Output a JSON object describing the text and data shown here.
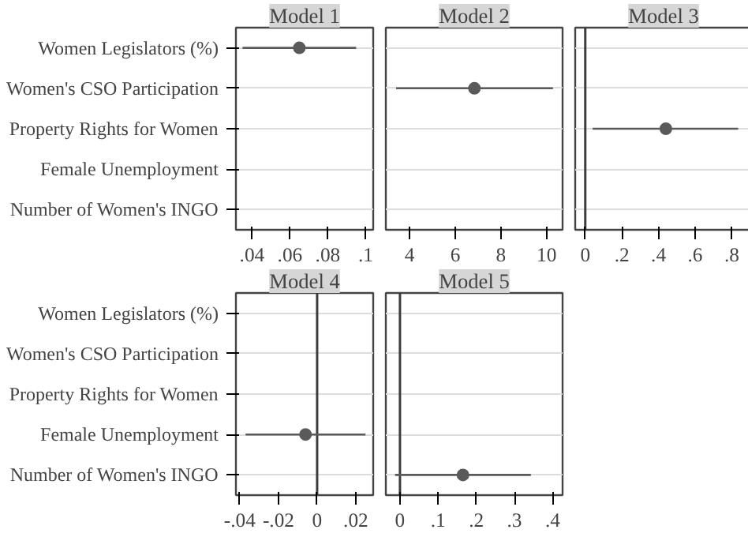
{
  "chart_data": [
    {
      "type": "scatter",
      "orientation": "horizontal",
      "title": "Model 1",
      "categories": [
        "Women Legislators (%)",
        "Women's CSO Participation",
        "Property Rights for Women",
        "Female Unemployment",
        "Number of Women's INGO"
      ],
      "values": [
        0.065,
        null,
        null,
        null,
        null
      ],
      "errors": [
        [
          0.035,
          0.095
        ],
        null,
        null,
        null,
        null
      ],
      "color": "#5a5a5a",
      "marker": "circle",
      "grid": "y",
      "xlim": [
        0.0315,
        0.104
      ],
      "xticks": [
        {
          "value": 0.04,
          "label": ".04"
        },
        {
          "value": 0.06,
          "label": ".06"
        },
        {
          "value": 0.08,
          "label": ".08"
        },
        {
          "value": 0.1,
          "label": ".1"
        }
      ]
    },
    {
      "type": "scatter",
      "orientation": "horizontal",
      "title": "Model 2",
      "categories": [
        null,
        null,
        null,
        null,
        null
      ],
      "values": [
        null,
        6.84,
        null,
        null,
        null
      ],
      "errors": [
        null,
        [
          3.41,
          10.28
        ],
        null,
        null,
        null
      ],
      "color": "#5a5a5a",
      "marker": "circle",
      "grid": "y",
      "tick_labels": "x",
      "xlim": [
        2.96,
        10.7
      ],
      "xticks": [
        4,
        6,
        8,
        10
      ]
    },
    {
      "type": "scatter",
      "orientation": "horizontal",
      "title": "Model 3",
      "categories": [
        null,
        null,
        null,
        null,
        null
      ],
      "values": [
        null,
        null,
        0.44,
        null,
        null
      ],
      "errors": [
        null,
        null,
        [
          0.04,
          0.835
        ],
        null,
        null
      ],
      "color": "#5a5a5a",
      "marker": "circle",
      "grid": "y",
      "tick_labels": "x",
      "xlim": [
        -0.055,
        0.91
      ],
      "xticks": [
        {
          "value": 0,
          "label": "0"
        },
        {
          "value": 0.2,
          "label": ".2"
        },
        {
          "value": 0.4,
          "label": ".4"
        },
        {
          "value": 0.6,
          "label": ".6"
        },
        {
          "value": 0.8,
          "label": ".8"
        }
      ],
      "ref_lines": [
        {
          "axis": "x",
          "value": 0,
          "color": "#3c3c3c"
        }
      ]
    },
    {
      "type": "scatter",
      "orientation": "horizontal",
      "title": "Model 4",
      "categories": [
        "Women Legislators (%)",
        "Women's CSO Participation",
        "Property Rights for Women",
        "Female Unemployment",
        "Number of Women's INGO"
      ],
      "values": [
        null,
        null,
        null,
        -0.006,
        null
      ],
      "errors": [
        null,
        null,
        null,
        [
          -0.037,
          0.025
        ],
        null
      ],
      "color": "#5a5a5a",
      "marker": "circle",
      "grid": "y",
      "xlim": [
        -0.042,
        0.029
      ],
      "xticks": [
        {
          "value": -0.04,
          "label": "-.04"
        },
        {
          "value": -0.02,
          "label": "-.02"
        },
        {
          "value": 0,
          "label": "0"
        },
        {
          "value": 0.02,
          "label": ".02"
        }
      ],
      "ref_lines": [
        {
          "axis": "x",
          "value": 0,
          "color": "#3c3c3c"
        }
      ]
    },
    {
      "type": "scatter",
      "orientation": "horizontal",
      "title": "Model 5",
      "categories": [
        null,
        null,
        null,
        null,
        null
      ],
      "values": [
        null,
        null,
        null,
        null,
        0.165
      ],
      "errors": [
        null,
        null,
        null,
        null,
        [
          -0.013,
          0.343
        ]
      ],
      "color": "#5a5a5a",
      "marker": "circle",
      "grid": "y",
      "tick_labels": "x",
      "xlim": [
        -0.037,
        0.426
      ],
      "xticks": [
        {
          "value": 0,
          "label": "0"
        },
        {
          "value": 0.1,
          "label": ".1"
        },
        {
          "value": 0.2,
          "label": ".2"
        },
        {
          "value": 0.3,
          "label": ".3"
        },
        {
          "value": 0.4,
          "label": ".4"
        }
      ],
      "ref_lines": [
        {
          "axis": "x",
          "value": 0,
          "color": "#3c3c3c"
        }
      ]
    }
  ]
}
